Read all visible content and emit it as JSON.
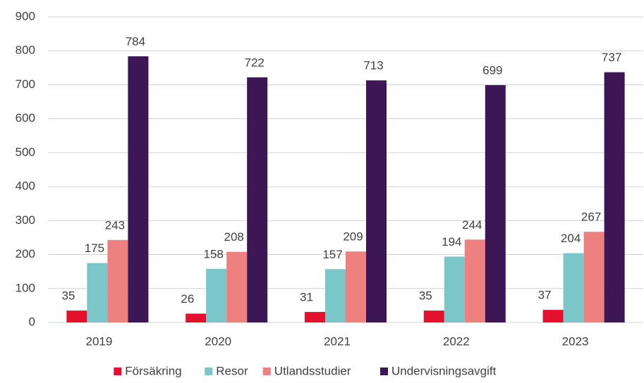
{
  "chart_data": {
    "type": "bar",
    "categories": [
      "2019",
      "2020",
      "2021",
      "2022",
      "2023"
    ],
    "series": [
      {
        "name": "Försäkring",
        "color": "#e4102e",
        "values": [
          35,
          26,
          31,
          35,
          37
        ]
      },
      {
        "name": "Resor",
        "color": "#7ac6c9",
        "values": [
          175,
          158,
          157,
          194,
          204
        ]
      },
      {
        "name": "Utlandsstudier",
        "color": "#ef8080",
        "values": [
          243,
          208,
          209,
          244,
          267
        ]
      },
      {
        "name": "Undervisningsavgift",
        "color": "#3d1656",
        "values": [
          784,
          722,
          713,
          699,
          737
        ]
      }
    ],
    "ylim": [
      0,
      900
    ],
    "yticks": [
      0,
      100,
      200,
      300,
      400,
      500,
      600,
      700,
      800,
      900
    ],
    "grid": true,
    "legend": "bottom"
  }
}
